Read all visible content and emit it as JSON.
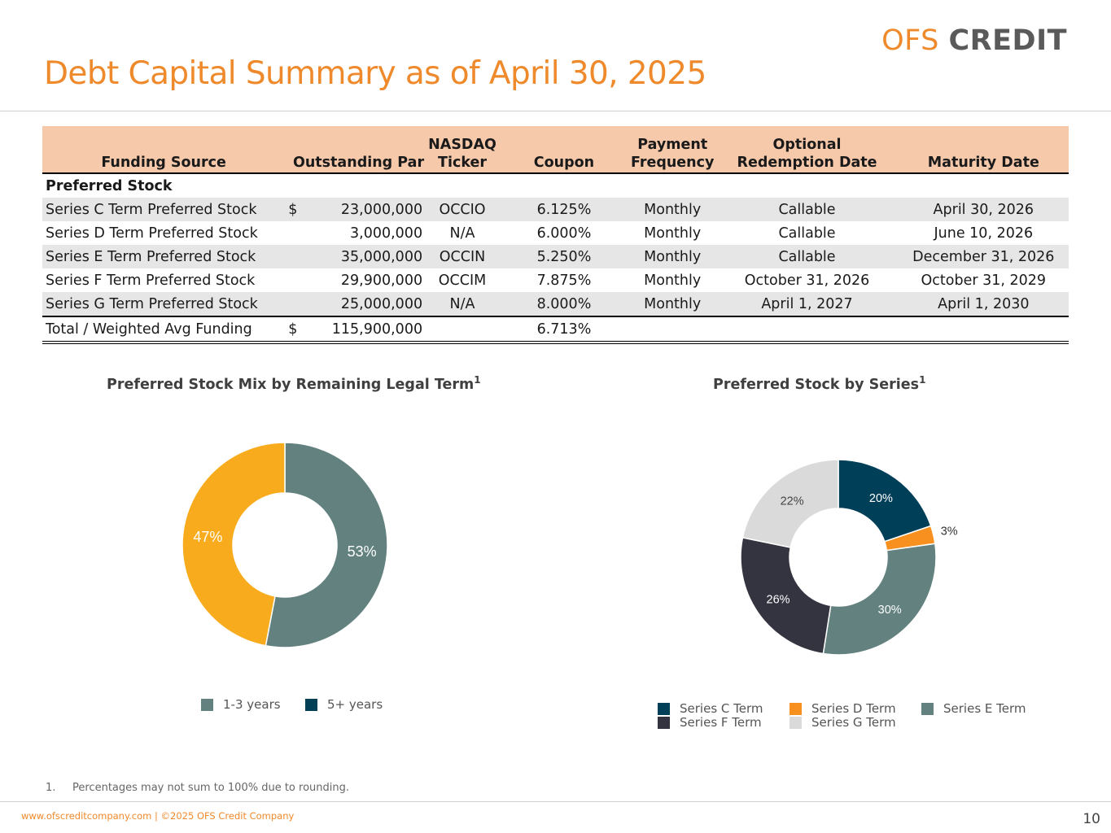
{
  "logo": {
    "part1": "OFS",
    "part2": "CREDIT"
  },
  "title": "Debt Capital Summary as of April 30, 2025",
  "table": {
    "headers": {
      "source": "Funding  Source",
      "par": "Outstanding Par",
      "ticker_1": "NASDAQ",
      "ticker_2": "Ticker",
      "coupon": "Coupon",
      "freq_1": "Payment",
      "freq_2": "Frequency",
      "redemption_1": "Optional",
      "redemption_2": "Redemption Date",
      "maturity": "Maturity Date"
    },
    "section_label": "Preferred Stock",
    "rows": [
      {
        "source": "Series C Term Preferred Stock",
        "currency": "$",
        "par": "23,000,000",
        "ticker": "OCCIO",
        "coupon": "6.125%",
        "freq": "Monthly",
        "redemption": "Callable",
        "maturity": "April 30, 2026"
      },
      {
        "source": "Series D Term Preferred Stock",
        "currency": "",
        "par": "3,000,000",
        "ticker": "N/A",
        "coupon": "6.000%",
        "freq": "Monthly",
        "redemption": "Callable",
        "maturity": "June 10, 2026"
      },
      {
        "source": "Series E Term Preferred Stock",
        "currency": "",
        "par": "35,000,000",
        "ticker": "OCCIN",
        "coupon": "5.250%",
        "freq": "Monthly",
        "redemption": "Callable",
        "maturity": "December 31, 2026"
      },
      {
        "source": "Series F Term Preferred Stock",
        "currency": "",
        "par": "29,900,000",
        "ticker": "OCCIM",
        "coupon": "7.875%",
        "freq": "Monthly",
        "redemption": "October 31, 2026",
        "maturity": "October 31, 2029"
      },
      {
        "source": "Series G Term Preferred Stock",
        "currency": "",
        "par": "25,000,000",
        "ticker": "N/A",
        "coupon": "8.000%",
        "freq": "Monthly",
        "redemption": "April 1, 2027",
        "maturity": "April 1, 2030"
      }
    ],
    "total": {
      "source": "Total / Weighted Avg Funding",
      "currency": "$",
      "par": "115,900,000",
      "coupon": "6.713%"
    }
  },
  "chart_data": [
    {
      "type": "pie",
      "title": "Preferred Stock Mix by Remaining Legal Term",
      "title_sup": "1",
      "slices": [
        {
          "label": "53%",
          "value": 53,
          "color": "#62817f"
        },
        {
          "label": "47%",
          "value": 47,
          "color": "#f8ab1c"
        }
      ],
      "legend": [
        {
          "name": "1-3 years",
          "color": "#62817f"
        },
        {
          "name": "5+ years",
          "color": "#013f57"
        }
      ]
    },
    {
      "type": "pie",
      "title": "Preferred Stock by Series",
      "title_sup": "1",
      "slices": [
        {
          "label": "20%",
          "value": 20,
          "color": "#003f58"
        },
        {
          "label": "3%",
          "value": 3,
          "color": "#f7901e"
        },
        {
          "label": "30%",
          "value": 30,
          "color": "#62817f"
        },
        {
          "label": "26%",
          "value": 26,
          "color": "#33343f"
        },
        {
          "label": "22%",
          "value": 22,
          "color": "#dadada"
        }
      ],
      "legend": [
        {
          "name": "Series C Term",
          "color": "#003f58"
        },
        {
          "name": "Series D Term",
          "color": "#f7901e"
        },
        {
          "name": "Series E Term",
          "color": "#62817f"
        },
        {
          "name": "Series F Term",
          "color": "#33343f"
        },
        {
          "name": "Series G Term",
          "color": "#dadada"
        }
      ]
    }
  ],
  "footnote": {
    "number": "1.",
    "text": "Percentages may not sum to 100% due to rounding."
  },
  "footer": {
    "text": "www.ofscreditcompany.com |   ©2025 OFS Credit Company",
    "page": "10"
  }
}
